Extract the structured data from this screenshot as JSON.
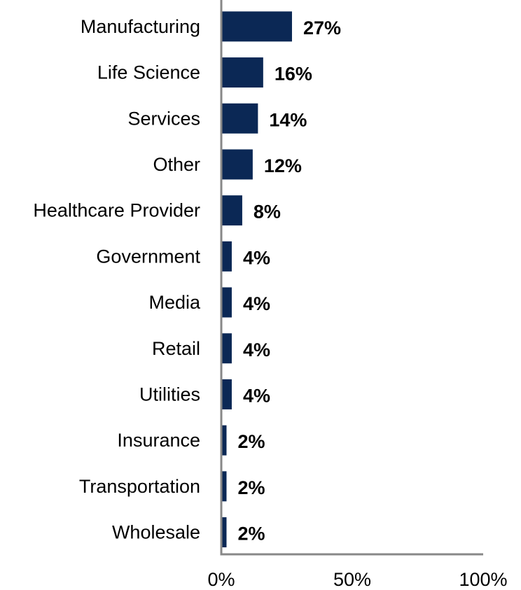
{
  "chart_data": {
    "type": "bar",
    "orientation": "horizontal",
    "categories": [
      "Manufacturing",
      "Life Science",
      "Services",
      "Other",
      "Healthcare Provider",
      "Government",
      "Media",
      "Retail",
      "Utilities",
      "Insurance",
      "Transportation",
      "Wholesale"
    ],
    "values": [
      27,
      16,
      14,
      12,
      8,
      4,
      4,
      4,
      4,
      2,
      2,
      2
    ],
    "value_labels": [
      "27%",
      "16%",
      "14%",
      "12%",
      "8%",
      "4%",
      "4%",
      "4%",
      "4%",
      "2%",
      "2%",
      "2%"
    ],
    "value_unit": "%",
    "xlim": [
      0,
      100
    ],
    "x_ticks": [
      0,
      50,
      100
    ],
    "x_tick_labels": [
      "0%",
      "50%",
      "100%"
    ],
    "title": "",
    "xlabel": "",
    "ylabel": "",
    "grid": false,
    "legend": "none",
    "colors": {
      "bar": "#0b2855",
      "axis": "#888888",
      "text": "#000000"
    }
  }
}
